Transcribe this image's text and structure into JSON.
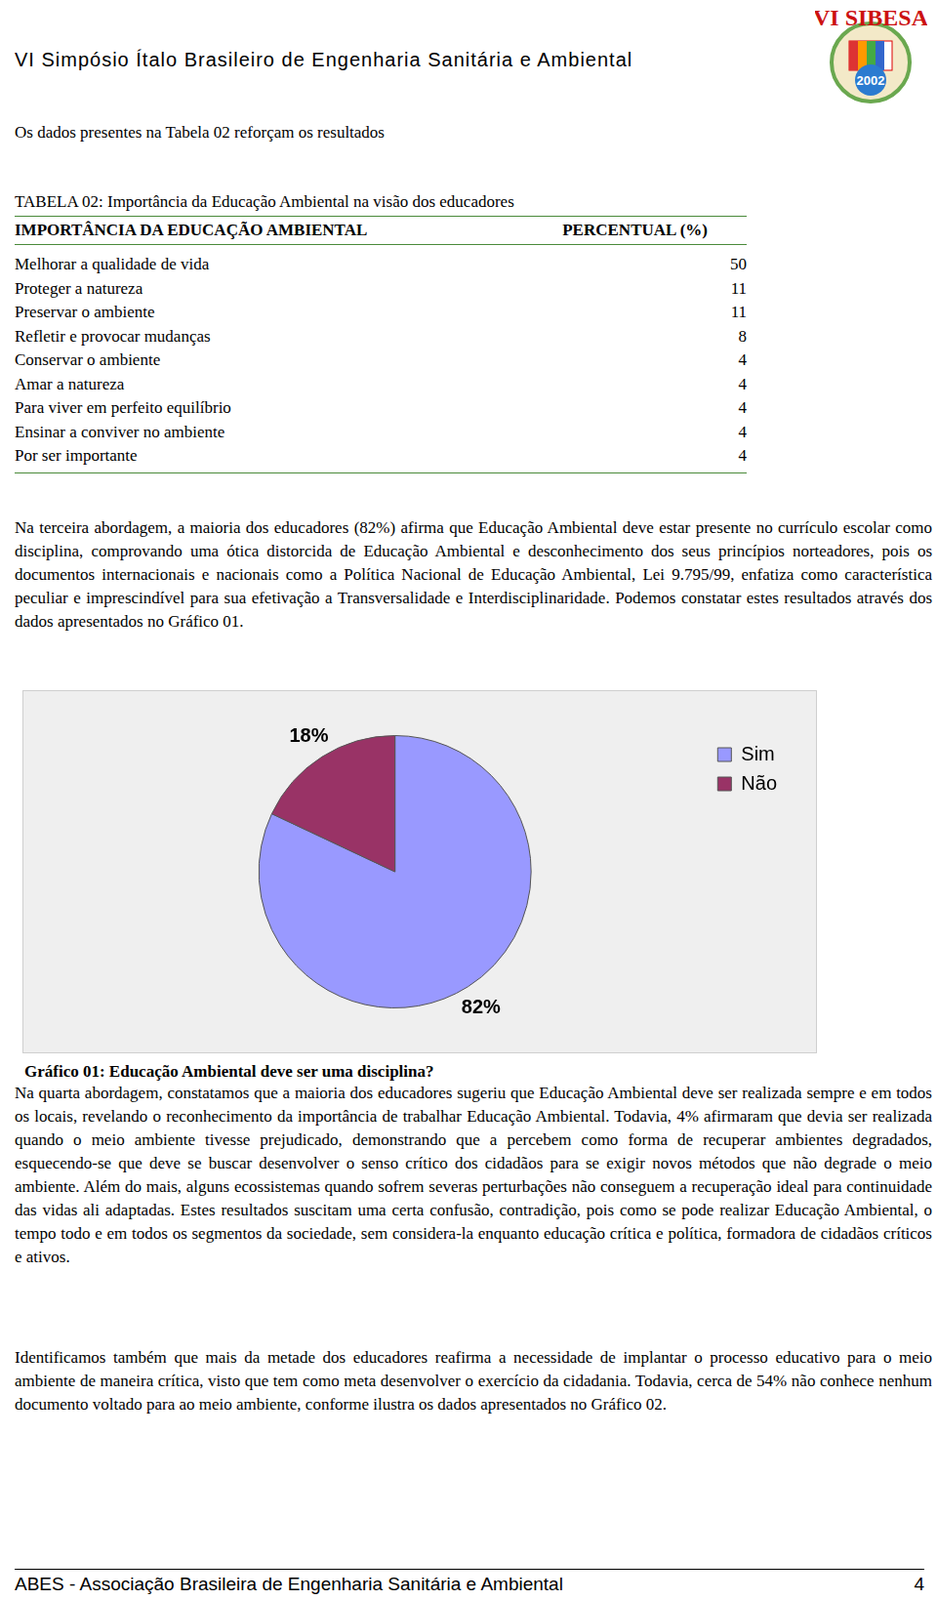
{
  "header": "VI Simpósio Ítalo Brasileiro de Engenharia Sanitária e Ambiental",
  "logo": {
    "title": "VI SIBESA",
    "year": "2002"
  },
  "intro": "Os dados presentes na Tabela 02  reforçam os resultados",
  "table": {
    "title": "TABELA 02: Importância da Educação Ambiental na visão dos educadores",
    "columns": [
      "IMPORTÂNCIA DA EDUCAÇÃO AMBIENTAL",
      "PERCENTUAL (%)"
    ],
    "rows": [
      [
        "Melhorar a qualidade de vida",
        50
      ],
      [
        "Proteger a natureza",
        11
      ],
      [
        "Preservar o ambiente",
        11
      ],
      [
        "Refletir e provocar mudanças",
        8
      ],
      [
        "Conservar o ambiente",
        4
      ],
      [
        "Amar a natureza",
        4
      ],
      [
        "Para viver em perfeito equilíbrio",
        4
      ],
      [
        "Ensinar a conviver no ambiente",
        4
      ],
      [
        "Por ser importante",
        4
      ]
    ]
  },
  "paragraph_1": "Na terceira abordagem, a maioria dos educadores (82%) afirma que  Educação Ambiental deve estar presente no currículo escolar como disciplina, comprovando uma ótica distorcida de Educação Ambiental e desconhecimento dos seus princípios norteadores,  pois os documentos internacionais e nacionais  como a Política Nacional de Educação Ambiental, Lei 9.795/99, enfatiza como característica peculiar e imprescindível para sua efetivação a Transversalidade e Interdisciplinaridade.  Podemos constatar estes resultados através dos dados apresentados no Gráfico 01.",
  "chart_data": {
    "type": "pie",
    "title": "Gráfico 01: Educação Ambiental deve ser uma disciplina?",
    "categories": [
      "Sim",
      "Não"
    ],
    "values": [
      82,
      18
    ],
    "value_labels": [
      "82%",
      "18%"
    ],
    "colors": [
      "#9999ff",
      "#993366"
    ],
    "legend": "right",
    "data_labels": true
  },
  "paragraph_2": "Na quarta abordagem, constatamos que a maioria dos educadores sugeriu que Educação Ambiental deve ser realizada sempre e em todos os locais, revelando o reconhecimento da importância de trabalhar Educação Ambiental. Todavia,  4% afirmaram que devia ser realizada quando o meio ambiente tivesse prejudicado, demonstrando que a percebem como forma de recuperar ambientes degradados, esquecendo-se que deve se buscar desenvolver o senso crítico dos cidadãos para se exigir novos métodos que não degrade o meio ambiente. Além do mais,  alguns ecossistemas quando sofrem severas perturbações não conseguem a recuperação ideal para continuidade das vidas ali adaptadas.  Estes resultados suscitam uma certa confusão, contradição, pois como se pode realizar Educação Ambiental, o tempo todo e em todos os segmentos da sociedade, sem considera-la enquanto educação crítica e política, formadora de cidadãos críticos e ativos.",
  "paragraph_3": "Identificamos também que mais da metade dos educadores reafirma a necessidade de implantar o processo educativo para o meio ambiente de maneira crítica, visto que tem como meta desenvolver o exercício da cidadania. Todavia, cerca de 54% não conhece nenhum documento voltado para ao meio ambiente, conforme ilustra os dados apresentados no Gráfico 02.",
  "footer": {
    "text": "ABES - Associação Brasileira de Engenharia Sanitária e Ambiental",
    "page": "4"
  }
}
